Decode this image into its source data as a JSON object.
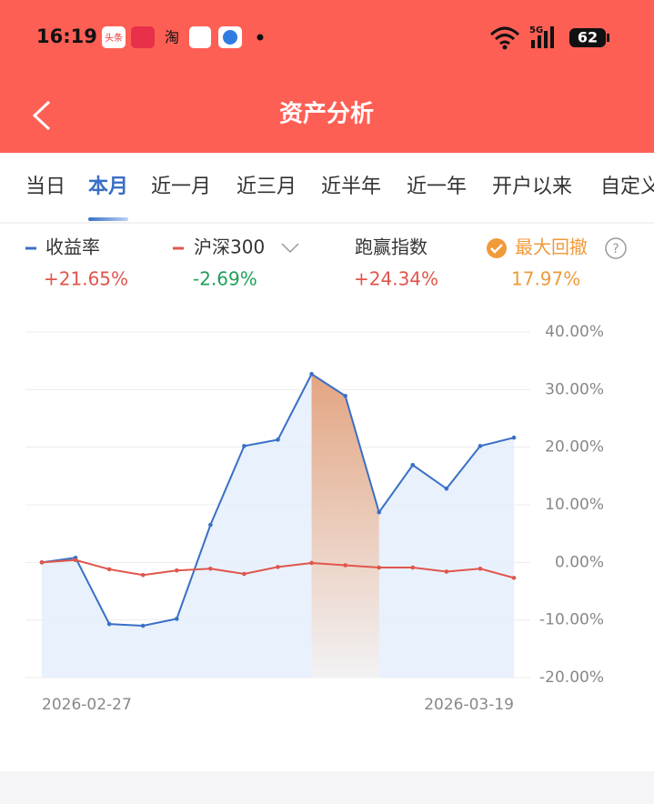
{
  "status_bar": {
    "time": "16:19",
    "apps": [
      "头条",
      "淘"
    ],
    "network": "5G",
    "battery": "62"
  },
  "header": {
    "title": "资产分析"
  },
  "tabs": [
    {
      "label": "当日"
    },
    {
      "label": "本月",
      "active": true
    },
    {
      "label": "近一月"
    },
    {
      "label": "近三月"
    },
    {
      "label": "近半年"
    },
    {
      "label": "近一年"
    },
    {
      "label": "开户以来"
    },
    {
      "label": "自定义"
    }
  ],
  "chart_data": {
    "type": "line",
    "categories": [
      "2026-02-27",
      null,
      null,
      null,
      null,
      null,
      null,
      null,
      null,
      null,
      null,
      null,
      null,
      null,
      "2026-03-19"
    ],
    "series": [
      {
        "name": "收益率",
        "color": "#3a6fc6",
        "total": "+21.65%",
        "total_color": "#e0564c",
        "values": [
          0,
          0.8,
          -10.7,
          -11,
          -9.8,
          6.5,
          20.2,
          21.3,
          32.7,
          28.9,
          8.7,
          16.9,
          12.8,
          20.2,
          21.65
        ]
      },
      {
        "name": "沪深300",
        "color": "#e0564c",
        "total": "-2.69%",
        "total_color": "#1ea05a",
        "values": [
          0,
          0.4,
          -1.2,
          -2.2,
          -1.4,
          -1.1,
          -2.0,
          -0.8,
          -0.1,
          -0.5,
          -0.9,
          -0.9,
          -1.6,
          -1.1,
          -2.69
        ]
      }
    ],
    "extras": [
      {
        "name": "跑赢指数",
        "value": "+24.34%",
        "color": "#e0564c"
      },
      {
        "name": "最大回撤",
        "value": "17.97%",
        "color": "#f09a3a"
      }
    ],
    "ylim": [
      -20,
      40
    ],
    "yticks": [
      {
        "value": 40,
        "label": "40.00%"
      },
      {
        "value": 30,
        "label": "30.00%"
      },
      {
        "value": 20,
        "label": "20.00%"
      },
      {
        "value": 10,
        "label": "10.00%"
      },
      {
        "value": 0,
        "label": "0.00%"
      },
      {
        "value": -10,
        "label": "-10.00%"
      },
      {
        "value": -20,
        "label": "-20.00%"
      }
    ],
    "grid": true
  }
}
